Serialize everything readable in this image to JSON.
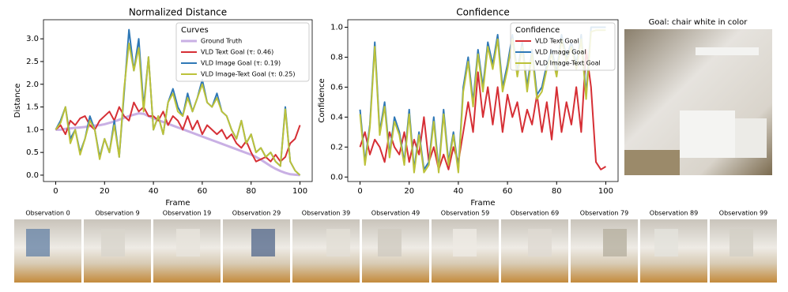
{
  "chart_data": [
    {
      "type": "line",
      "title": "Normalized Distance",
      "x_label": "Frame",
      "y_label": "Distance",
      "xlim": [
        -5,
        105
      ],
      "ylim": [
        -0.14,
        3.42
      ],
      "xticks": [
        0,
        20,
        40,
        60,
        80,
        100
      ],
      "yticks": [
        {
          "value": 0,
          "label": "0.0"
        },
        0.5,
        {
          "value": 1,
          "label": "1.0"
        },
        1.5,
        {
          "value": 2,
          "label": "2.0"
        },
        2.5,
        {
          "value": 3,
          "label": "3.0"
        }
      ],
      "legend": "upper right",
      "legend_title": "Curves",
      "x": [
        0,
        2,
        4,
        6,
        8,
        10,
        12,
        14,
        16,
        18,
        20,
        22,
        24,
        26,
        28,
        30,
        32,
        34,
        36,
        38,
        40,
        42,
        44,
        46,
        48,
        50,
        52,
        54,
        56,
        58,
        60,
        62,
        64,
        66,
        68,
        70,
        72,
        74,
        76,
        78,
        80,
        82,
        84,
        86,
        88,
        90,
        92,
        94,
        96,
        98,
        100
      ],
      "series": [
        {
          "name": "Ground Truth",
          "color": "#c9b0e4",
          "values": [
            1.0,
            1.0,
            1.02,
            1.03,
            1.04,
            1.05,
            1.06,
            1.08,
            1.09,
            1.1,
            1.12,
            1.15,
            1.18,
            1.22,
            1.26,
            1.3,
            1.33,
            1.36,
            1.35,
            1.3,
            1.25,
            1.21,
            1.17,
            1.13,
            1.09,
            1.05,
            1.01,
            0.97,
            0.93,
            0.89,
            0.85,
            0.81,
            0.77,
            0.73,
            0.69,
            0.65,
            0.61,
            0.57,
            0.53,
            0.49,
            0.45,
            0.4,
            0.34,
            0.27,
            0.2,
            0.14,
            0.09,
            0.05,
            0.02,
            0.01,
            0.0
          ]
        },
        {
          "name": "VLD Text Goal (τ: 0.46)",
          "color": "#d62f35",
          "values": [
            1.0,
            1.1,
            0.9,
            1.2,
            1.1,
            1.25,
            1.3,
            1.1,
            1.0,
            1.2,
            1.3,
            1.4,
            1.2,
            1.5,
            1.3,
            1.2,
            1.6,
            1.4,
            1.5,
            1.3,
            1.3,
            1.2,
            1.4,
            1.1,
            1.3,
            1.2,
            1.0,
            1.3,
            1.0,
            1.2,
            0.9,
            1.1,
            1.0,
            0.9,
            1.0,
            0.8,
            0.9,
            0.7,
            0.6,
            0.75,
            0.5,
            0.3,
            0.35,
            0.4,
            0.3,
            0.45,
            0.3,
            0.4,
            0.7,
            0.8,
            1.1
          ]
        },
        {
          "name": "VLD Image Goal (τ: 0.19)",
          "color": "#2f78b6",
          "values": [
            1.0,
            1.2,
            1.5,
            0.8,
            1.0,
            0.5,
            0.8,
            1.3,
            1.0,
            0.4,
            0.8,
            0.5,
            1.2,
            0.4,
            1.8,
            3.2,
            2.3,
            3.0,
            1.5,
            2.6,
            1.0,
            1.3,
            0.9,
            1.6,
            1.9,
            1.5,
            1.3,
            1.8,
            1.4,
            1.7,
            2.1,
            1.6,
            1.5,
            1.8,
            1.4,
            1.3,
            1.0,
            0.8,
            1.2,
            0.7,
            0.9,
            0.5,
            0.6,
            0.4,
            0.5,
            0.3,
            0.2,
            1.5,
            0.3,
            0.1,
            0.0
          ]
        },
        {
          "name": "VLD Image-Text Goal (τ: 0.25)",
          "color": "#bcc23a",
          "values": [
            1.0,
            1.15,
            1.5,
            0.7,
            1.0,
            0.45,
            0.8,
            1.2,
            1.0,
            0.35,
            0.8,
            0.5,
            1.1,
            0.4,
            1.9,
            2.9,
            2.3,
            2.8,
            1.4,
            2.6,
            1.0,
            1.3,
            0.9,
            1.6,
            1.8,
            1.4,
            1.3,
            1.7,
            1.4,
            1.7,
            2.0,
            1.6,
            1.5,
            1.7,
            1.4,
            1.3,
            1.0,
            0.8,
            1.2,
            0.7,
            0.9,
            0.5,
            0.6,
            0.4,
            0.5,
            0.3,
            0.2,
            1.45,
            0.3,
            0.1,
            0.0
          ]
        }
      ]
    },
    {
      "type": "line",
      "title": "Confidence",
      "x_label": "Frame",
      "y_label": "Confidence",
      "xlim": [
        -5,
        105
      ],
      "ylim": [
        -0.03,
        1.05
      ],
      "xticks": [
        0,
        20,
        40,
        60,
        80,
        100
      ],
      "yticks": [
        {
          "value": 0,
          "label": "0.0"
        },
        0.2,
        0.4,
        0.6,
        0.8,
        {
          "value": 1,
          "label": "1.0"
        }
      ],
      "legend": "upper right",
      "legend_title": "Confidence",
      "x": [
        0,
        2,
        4,
        6,
        8,
        10,
        12,
        14,
        16,
        18,
        20,
        22,
        24,
        26,
        28,
        30,
        32,
        34,
        36,
        38,
        40,
        42,
        44,
        46,
        48,
        50,
        52,
        54,
        56,
        58,
        60,
        62,
        64,
        66,
        68,
        70,
        72,
        74,
        76,
        78,
        80,
        82,
        84,
        86,
        88,
        90,
        92,
        94,
        96,
        98,
        100
      ],
      "series": [
        {
          "name": "VLD Text Goal",
          "color": "#d62f35",
          "values": [
            0.2,
            0.3,
            0.15,
            0.25,
            0.2,
            0.1,
            0.3,
            0.2,
            0.15,
            0.3,
            0.1,
            0.25,
            0.15,
            0.4,
            0.1,
            0.2,
            0.05,
            0.15,
            0.05,
            0.2,
            0.1,
            0.3,
            0.5,
            0.3,
            0.7,
            0.4,
            0.6,
            0.35,
            0.6,
            0.3,
            0.55,
            0.4,
            0.5,
            0.3,
            0.45,
            0.35,
            0.55,
            0.3,
            0.5,
            0.25,
            0.6,
            0.3,
            0.5,
            0.35,
            0.6,
            0.3,
            0.85,
            0.6,
            0.1,
            0.05,
            0.07
          ]
        },
        {
          "name": "VLD Image Goal",
          "color": "#2f78b6",
          "values": [
            0.45,
            0.1,
            0.35,
            0.9,
            0.3,
            0.5,
            0.15,
            0.4,
            0.3,
            0.1,
            0.45,
            0.05,
            0.3,
            0.05,
            0.1,
            0.4,
            0.05,
            0.45,
            0.1,
            0.3,
            0.05,
            0.6,
            0.8,
            0.5,
            0.85,
            0.6,
            0.9,
            0.75,
            0.95,
            0.6,
            0.75,
            0.95,
            0.7,
            0.9,
            0.6,
            0.85,
            0.55,
            0.6,
            0.75,
            0.85,
            0.7,
            0.95,
            0.8,
            0.9,
            0.75,
            0.95,
            0.55,
            1.0,
            1.0,
            1.0,
            1.0
          ]
        },
        {
          "name": "VLD Image-Text Goal",
          "color": "#bcc23a",
          "values": [
            0.42,
            0.08,
            0.33,
            0.87,
            0.28,
            0.47,
            0.13,
            0.37,
            0.28,
            0.08,
            0.42,
            0.03,
            0.28,
            0.03,
            0.08,
            0.37,
            0.03,
            0.42,
            0.08,
            0.28,
            0.03,
            0.57,
            0.77,
            0.47,
            0.82,
            0.57,
            0.87,
            0.72,
            0.92,
            0.57,
            0.72,
            0.92,
            0.67,
            0.87,
            0.57,
            0.82,
            0.52,
            0.57,
            0.72,
            0.82,
            0.67,
            0.92,
            0.77,
            0.87,
            0.72,
            0.92,
            0.52,
            0.97,
            0.98,
            0.98,
            0.98
          ]
        }
      ]
    }
  ],
  "goal": {
    "title": "Goal: chair white in color"
  },
  "observations": [
    {
      "label": "Observation 0"
    },
    {
      "label": "Observation 9"
    },
    {
      "label": "Observation 19"
    },
    {
      "label": "Observation 29"
    },
    {
      "label": "Observation 39"
    },
    {
      "label": "Observation 49"
    },
    {
      "label": "Observation 59"
    },
    {
      "label": "Observation 69"
    },
    {
      "label": "Observation 79"
    },
    {
      "label": "Observation 89"
    },
    {
      "label": "Observation 99"
    }
  ]
}
